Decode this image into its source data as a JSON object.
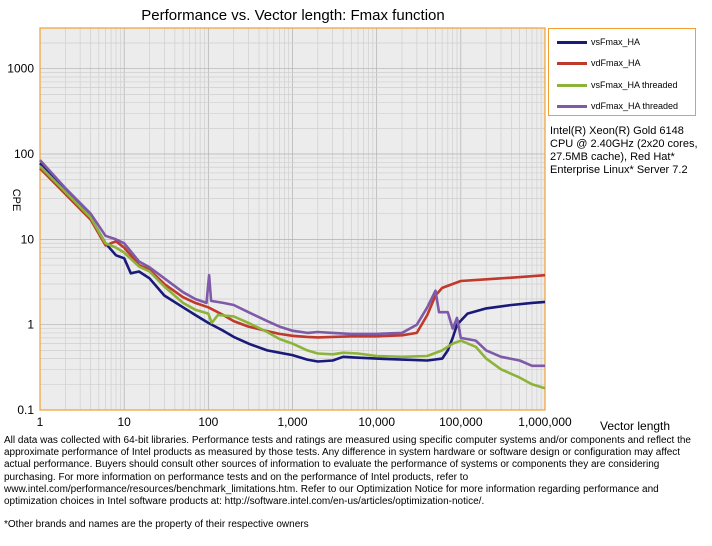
{
  "chart_data": {
    "type": "line",
    "title": "Performance vs. Vector length: Fmax function",
    "xlabel": "Vector length",
    "ylabel": "CPE",
    "x_scale": "log",
    "y_scale": "log",
    "xlim": [
      1,
      1000000
    ],
    "ylim": [
      0.1,
      3000
    ],
    "x_ticks": [
      1,
      10,
      100,
      1000,
      10000,
      100000,
      1000000
    ],
    "x_tick_labels": [
      "1",
      "10",
      "100",
      "1,000",
      "10,000",
      "100,000",
      "1,000,000"
    ],
    "y_ticks": [
      0.1,
      1,
      10,
      100,
      1000
    ],
    "y_tick_labels": [
      "0.1",
      "1",
      "10",
      "100",
      "1000"
    ],
    "grid": true,
    "legend_position": "right",
    "series": [
      {
        "name": "vsFmax_HA",
        "color": "#1a1a7a",
        "points": [
          [
            1,
            78
          ],
          [
            2,
            38
          ],
          [
            4,
            18
          ],
          [
            6,
            9
          ],
          [
            8,
            6.5
          ],
          [
            10,
            6
          ],
          [
            12,
            4
          ],
          [
            15,
            4.2
          ],
          [
            20,
            3.5
          ],
          [
            30,
            2.2
          ],
          [
            50,
            1.6
          ],
          [
            70,
            1.3
          ],
          [
            100,
            1.05
          ],
          [
            150,
            0.85
          ],
          [
            200,
            0.72
          ],
          [
            300,
            0.6
          ],
          [
            500,
            0.5
          ],
          [
            700,
            0.47
          ],
          [
            1000,
            0.44
          ],
          [
            1500,
            0.39
          ],
          [
            2000,
            0.37
          ],
          [
            3000,
            0.38
          ],
          [
            4000,
            0.42
          ],
          [
            6000,
            0.41
          ],
          [
            10000,
            0.4
          ],
          [
            20000,
            0.39
          ],
          [
            40000,
            0.38
          ],
          [
            60000,
            0.4
          ],
          [
            70000,
            0.5
          ],
          [
            80000,
            0.7
          ],
          [
            90000,
            1.0
          ],
          [
            120000,
            1.35
          ],
          [
            200000,
            1.55
          ],
          [
            400000,
            1.7
          ],
          [
            700000,
            1.8
          ],
          [
            1000000,
            1.85
          ]
        ]
      },
      {
        "name": "vdFmax_HA",
        "color": "#c0392b",
        "points": [
          [
            1,
            68
          ],
          [
            2,
            34
          ],
          [
            4,
            17
          ],
          [
            6,
            8.5
          ],
          [
            8,
            9.5
          ],
          [
            10,
            8
          ],
          [
            15,
            5
          ],
          [
            20,
            4.4
          ],
          [
            30,
            3
          ],
          [
            50,
            2.1
          ],
          [
            70,
            1.8
          ],
          [
            100,
            1.6
          ],
          [
            150,
            1.3
          ],
          [
            200,
            1.1
          ],
          [
            300,
            0.95
          ],
          [
            500,
            0.84
          ],
          [
            700,
            0.78
          ],
          [
            1000,
            0.74
          ],
          [
            1500,
            0.72
          ],
          [
            2000,
            0.71
          ],
          [
            3000,
            0.72
          ],
          [
            5000,
            0.73
          ],
          [
            10000,
            0.73
          ],
          [
            20000,
            0.75
          ],
          [
            30000,
            0.8
          ],
          [
            40000,
            1.3
          ],
          [
            50000,
            2.2
          ],
          [
            60000,
            2.7
          ],
          [
            80000,
            3.0
          ],
          [
            100000,
            3.25
          ],
          [
            200000,
            3.4
          ],
          [
            400000,
            3.55
          ],
          [
            700000,
            3.7
          ],
          [
            1000000,
            3.8
          ]
        ]
      },
      {
        "name": "vsFmax_HA threaded",
        "color": "#8db33a",
        "points": [
          [
            1,
            72
          ],
          [
            2,
            36
          ],
          [
            4,
            18
          ],
          [
            6,
            9
          ],
          [
            8,
            8
          ],
          [
            10,
            7
          ],
          [
            15,
            4.8
          ],
          [
            20,
            4.2
          ],
          [
            30,
            2.8
          ],
          [
            50,
            1.8
          ],
          [
            70,
            1.5
          ],
          [
            100,
            1.35
          ],
          [
            110,
            1.05
          ],
          [
            130,
            1.3
          ],
          [
            200,
            1.25
          ],
          [
            300,
            1.05
          ],
          [
            500,
            0.82
          ],
          [
            700,
            0.68
          ],
          [
            1000,
            0.6
          ],
          [
            1500,
            0.5
          ],
          [
            2000,
            0.46
          ],
          [
            3000,
            0.45
          ],
          [
            4000,
            0.47
          ],
          [
            6000,
            0.46
          ],
          [
            10000,
            0.43
          ],
          [
            20000,
            0.42
          ],
          [
            40000,
            0.43
          ],
          [
            60000,
            0.5
          ],
          [
            80000,
            0.6
          ],
          [
            100000,
            0.65
          ],
          [
            150000,
            0.55
          ],
          [
            200000,
            0.4
          ],
          [
            300000,
            0.3
          ],
          [
            500000,
            0.24
          ],
          [
            700000,
            0.2
          ],
          [
            1000000,
            0.18
          ]
        ]
      },
      {
        "name": "vdFmax_HA threaded",
        "color": "#7e5aa8",
        "points": [
          [
            1,
            85
          ],
          [
            2,
            40
          ],
          [
            4,
            20
          ],
          [
            6,
            11
          ],
          [
            8,
            10
          ],
          [
            10,
            9
          ],
          [
            15,
            5.5
          ],
          [
            20,
            4.7
          ],
          [
            30,
            3.5
          ],
          [
            50,
            2.4
          ],
          [
            70,
            2
          ],
          [
            95,
            1.8
          ],
          [
            102,
            3.8
          ],
          [
            108,
            1.9
          ],
          [
            150,
            1.8
          ],
          [
            200,
            1.7
          ],
          [
            300,
            1.4
          ],
          [
            500,
            1.1
          ],
          [
            700,
            0.95
          ],
          [
            1000,
            0.85
          ],
          [
            1500,
            0.8
          ],
          [
            2000,
            0.82
          ],
          [
            3000,
            0.8
          ],
          [
            5000,
            0.78
          ],
          [
            10000,
            0.78
          ],
          [
            20000,
            0.8
          ],
          [
            30000,
            1.0
          ],
          [
            40000,
            1.6
          ],
          [
            50000,
            2.5
          ],
          [
            55000,
            1.4
          ],
          [
            70000,
            1.4
          ],
          [
            80000,
            0.9
          ],
          [
            90000,
            1.2
          ],
          [
            100000,
            0.7
          ],
          [
            150000,
            0.65
          ],
          [
            200000,
            0.5
          ],
          [
            300000,
            0.42
          ],
          [
            500000,
            0.38
          ],
          [
            700000,
            0.33
          ],
          [
            1000000,
            0.33
          ]
        ]
      }
    ]
  },
  "cpu_info": "Intel(R) Xeon(R) Gold 6148 CPU @ 2.40GHz (2x20 cores, 27.5MB cache), Red Hat* Enterprise Linux* Server 7.2",
  "footnote": "All data was collected with 64-bit libraries. Performance tests and ratings are measured using specific computer systems and/or components and reflect the approximate performance of Intel products as measured by those tests. Any difference in system hardware or software design or configuration may affect actual performance. Buyers should consult other sources of information to evaluate the performance of systems or components they are considering purchasing. For more information on performance tests and on the performance of Intel products, refer to www.intel.com/performance/resources/benchmark_limitations.htm. Refer to our Optimization Notice for more information regarding performance and optimization choices in Intel software products at: http://software.intel.com/en-us/articles/optimization-notice/.",
  "trademark": "*Other brands and names are the property of their respective owners"
}
